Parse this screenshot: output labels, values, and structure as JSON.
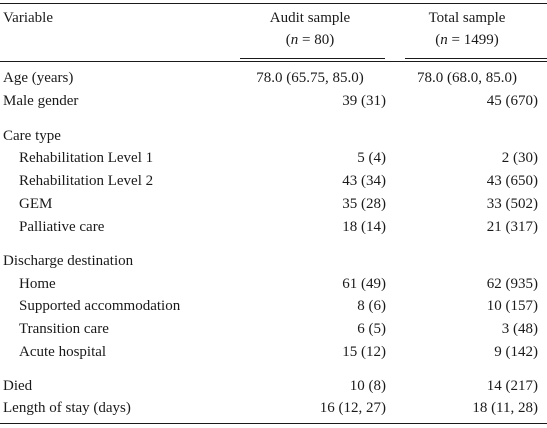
{
  "header": {
    "variable": "Variable",
    "audit_title": "Audit sample",
    "audit_n_prefix": "(",
    "audit_n_var": "n",
    "audit_n_rest": " = 80)",
    "total_title": "Total sample",
    "total_n_prefix": "(",
    "total_n_var": "n",
    "total_n_rest": " = 1499)"
  },
  "rows": [
    {
      "variable": "Age (years)",
      "audit": "78.0 (65.75, 85.0)",
      "total": "78.0 (68.0, 85.0)"
    },
    {
      "variable": "Male gender",
      "audit": "39 (31)",
      "total": "45 (670)"
    },
    {
      "variable": "Care type",
      "audit": "",
      "total": ""
    },
    {
      "variable": "Rehabilitation Level 1",
      "audit": "5 (4)",
      "total": "2 (30)"
    },
    {
      "variable": "Rehabilitation Level 2",
      "audit": "43 (34)",
      "total": "43 (650)"
    },
    {
      "variable": "GEM",
      "audit": "35 (28)",
      "total": "33 (502)"
    },
    {
      "variable": "Palliative care",
      "audit": "18 (14)",
      "total": "21 (317)"
    },
    {
      "variable": "Discharge destination",
      "audit": "",
      "total": ""
    },
    {
      "variable": "Home",
      "audit": "61 (49)",
      "total": "62 (935)"
    },
    {
      "variable": "Supported accommodation",
      "audit": "8 (6)",
      "total": "10 (157)"
    },
    {
      "variable": "Transition care",
      "audit": "6 (5)",
      "total": "3 (48)"
    },
    {
      "variable": "Acute hospital",
      "audit": "15 (12)",
      "total": "9 (142)"
    },
    {
      "variable": "Died",
      "audit": "10 (8)",
      "total": "14 (217)"
    },
    {
      "variable": "Length of stay (days)",
      "audit": "16 (12, 27)",
      "total": "18 (11, 28)"
    }
  ]
}
